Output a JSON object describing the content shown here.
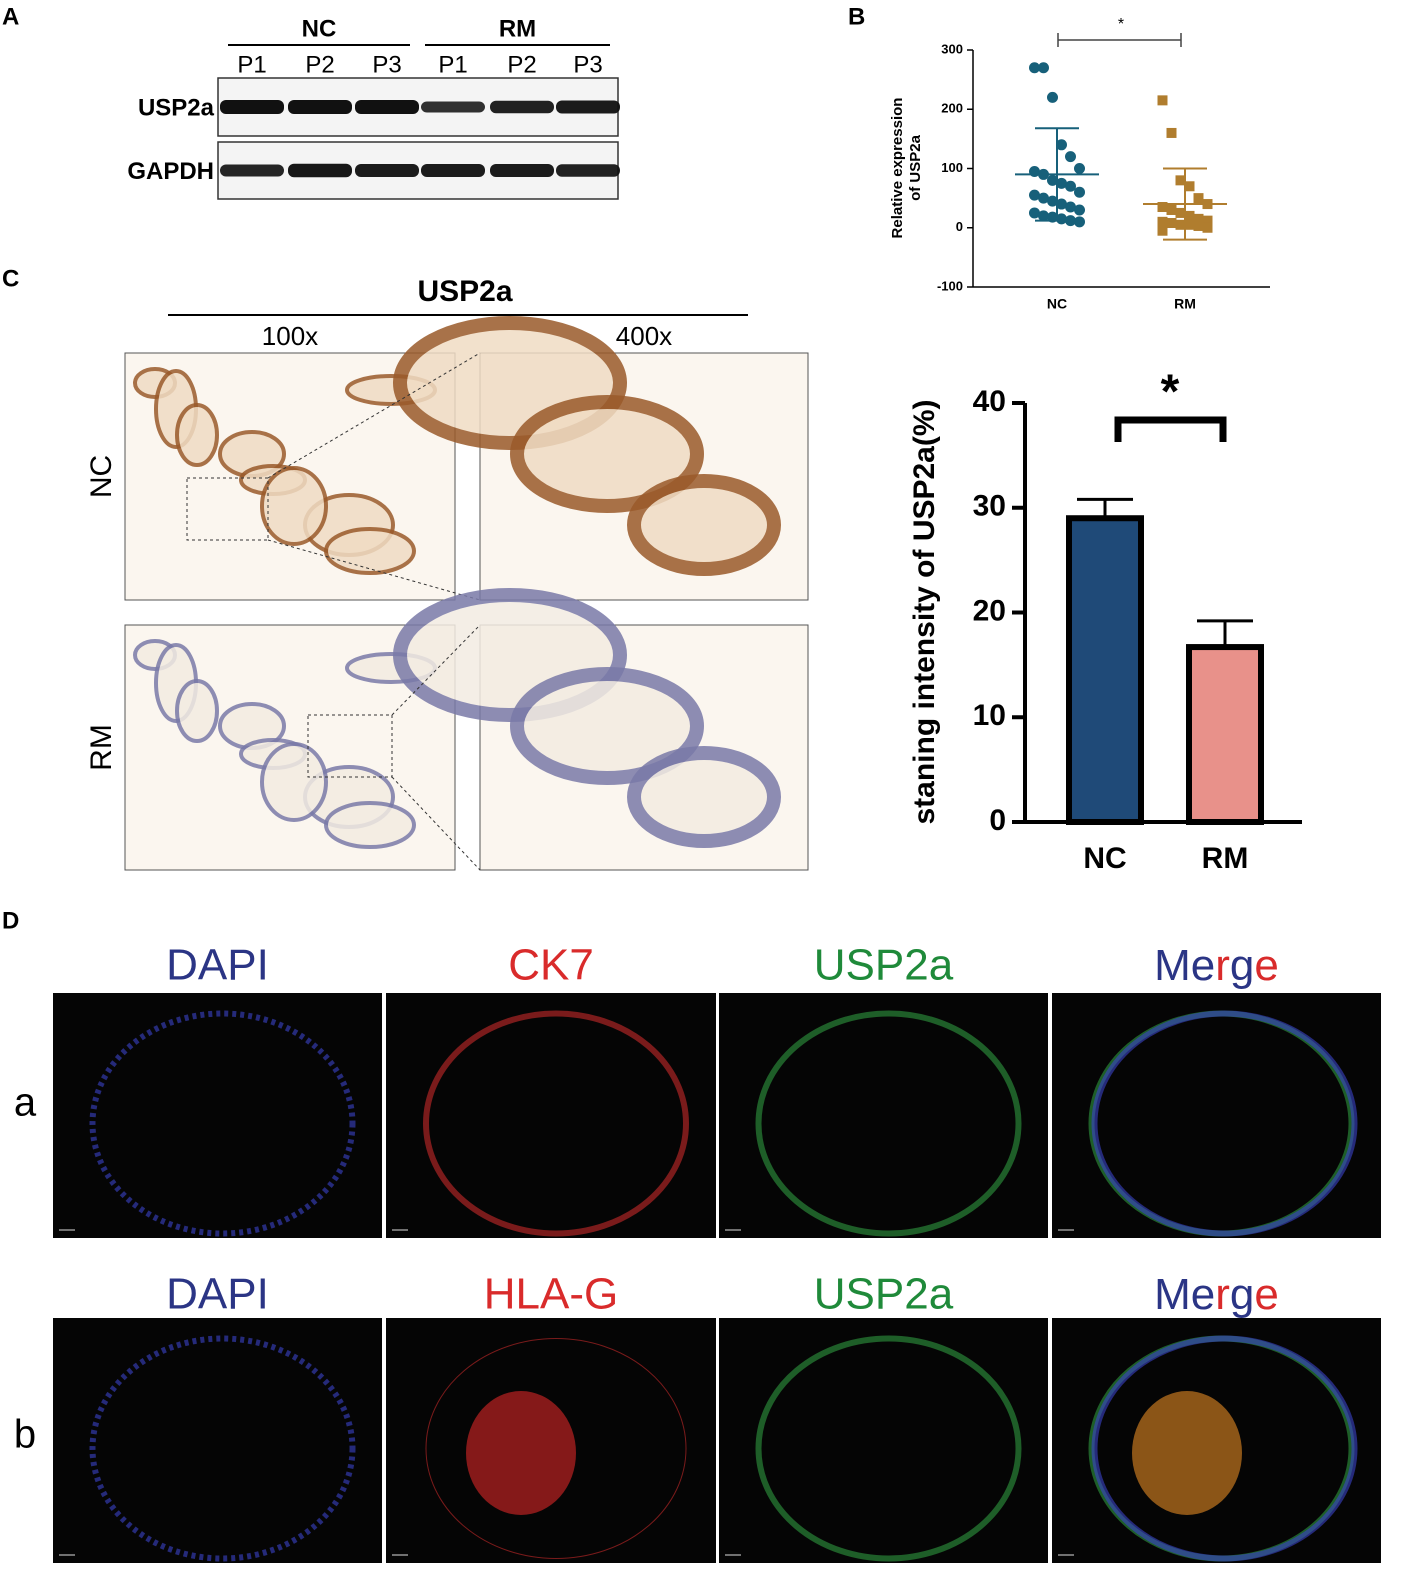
{
  "panel_labels": [
    "A",
    "B",
    "C",
    "D"
  ],
  "blot": {
    "groups": [
      "NC",
      "RM"
    ],
    "lanes": [
      "P1",
      "P2",
      "P3",
      "P1",
      "P2",
      "P3"
    ],
    "rows": [
      "USP2a",
      "GAPDH"
    ]
  },
  "chart_data": [
    {
      "type": "strip",
      "ylabel": [
        "Relative expression",
        "of USP2a"
      ],
      "categories": [
        "NC",
        "RM"
      ],
      "groups": [
        {
          "color": "#17607a",
          "values": [
            270,
            270,
            220,
            140,
            120,
            100,
            95,
            90,
            80,
            75,
            70,
            60,
            55,
            50,
            45,
            40,
            35,
            30,
            25,
            20,
            18,
            15,
            12,
            10
          ],
          "mean": 90,
          "sd": 78
        },
        {
          "color": "#b07d2e",
          "values": [
            215,
            160,
            80,
            70,
            50,
            40,
            35,
            30,
            25,
            20,
            15,
            12,
            10,
            8,
            5,
            5,
            3,
            0,
            -5
          ],
          "mean": 40,
          "sd": 60
        }
      ],
      "ylim": [
        -100,
        300
      ],
      "yticks": [
        -100,
        0,
        100,
        200,
        300
      ],
      "significance": "*"
    },
    {
      "type": "bar",
      "ylabel": "staning intensity of USP2a(%)",
      "categories": [
        "NC",
        "RM"
      ],
      "values": [
        29,
        16.7
      ],
      "errors": [
        1.8,
        2.5
      ],
      "colors": [
        "#1f4a78",
        "#e8918a"
      ],
      "ylim": [
        0,
        40
      ],
      "yticks": [
        0,
        10,
        20,
        30,
        40
      ],
      "significance": "*"
    }
  ],
  "ihc": {
    "title": "USP2a",
    "columns": [
      "100x",
      "400x"
    ],
    "rows": [
      "NC",
      "RM"
    ]
  },
  "immunofluorescence": {
    "rows": [
      {
        "label": "a",
        "channels": [
          "DAPI",
          "CK7",
          "USP2a",
          "Merge"
        ]
      },
      {
        "label": "b",
        "channels": [
          "DAPI",
          "HLA-G",
          "USP2a",
          "Merge"
        ]
      }
    ]
  }
}
